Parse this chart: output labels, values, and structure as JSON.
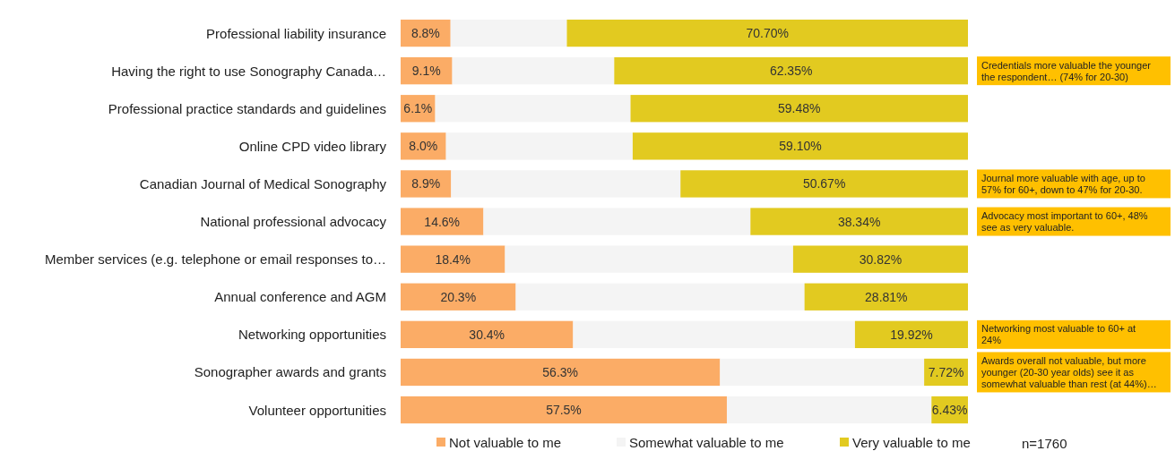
{
  "chart_data": {
    "type": "bar",
    "orientation": "horizontal",
    "stacked": true,
    "legend": "bottom",
    "categories": [
      "Professional liability insurance",
      "Having the right to use Sonography Canada…",
      "Professional practice standards and guidelines",
      "Online CPD video library",
      "Canadian Journal of Medical Sonography",
      "National professional advocacy",
      "Member services (e.g. telephone or email responses to…",
      "Annual conference and AGM",
      "Networking opportunities",
      "Sonographer awards and grants",
      "Volunteer opportunities"
    ],
    "series": [
      {
        "name": "Not valuable to me",
        "color": "#fbac66",
        "values": [
          8.8,
          9.1,
          6.1,
          8.0,
          8.9,
          14.6,
          18.4,
          20.3,
          30.4,
          56.3,
          57.5
        ],
        "value_labels": [
          "8.8%",
          "9.1%",
          "6.1%",
          "8.0%",
          "8.9%",
          "14.6%",
          "18.4%",
          "20.3%",
          "30.4%",
          "56.3%",
          "57.5%"
        ]
      },
      {
        "name": "Somewhat valuable to me",
        "color": "#f4f4f4",
        "values": [
          20.5,
          28.55,
          34.42,
          32.9,
          40.43,
          47.06,
          50.78,
          50.89,
          49.68,
          35.98,
          36.07
        ]
      },
      {
        "name": "Very valuable to me",
        "color": "#e2ca20",
        "values": [
          70.7,
          62.35,
          59.48,
          59.1,
          50.67,
          38.34,
          30.82,
          28.81,
          19.92,
          7.72,
          6.43
        ],
        "value_labels": [
          "70.70%",
          "62.35%",
          "59.48%",
          "59.10%",
          "50.67%",
          "38.34%",
          "30.82%",
          "28.81%",
          "19.92%",
          "7.72%",
          "6.43%"
        ]
      }
    ],
    "annotations": [
      "Credentials more valuable the younger the respondent… (74% for 20-30)",
      "Journal more valuable with age, up to 57% for 60+, down to 47% for 20-30.",
      "Advocacy most important to 60+, 48% see as very valuable.",
      "Networking most valuable to 60+ at 24%",
      "Awards overall not valuable, but more younger (20-30 year olds) see it as somewhat valuable than rest (at 44%)…",
      "n=1760"
    ]
  }
}
